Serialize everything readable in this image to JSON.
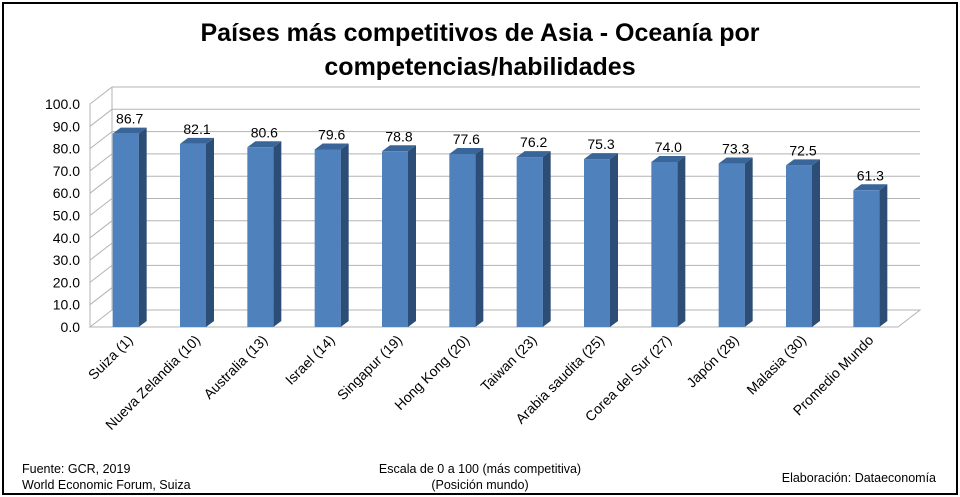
{
  "chart_data": {
    "type": "bar",
    "title_lines": [
      "Países más competitivos de Asia - Oceanía por",
      "competencias/habilidades"
    ],
    "categories": [
      "Suiza (1)",
      "Nueva Zelandia (10)",
      "Australia (13)",
      "Israel (14)",
      "Singapur (19)",
      "Hong Kong (20)",
      "Taiwan (23)",
      "Arabia saudita (25)",
      "Corea del Sur (27)",
      "Japón (28)",
      "Malasia (30)",
      "Promedio Mundo"
    ],
    "values": [
      86.7,
      82.1,
      80.6,
      79.6,
      78.8,
      77.6,
      76.2,
      75.3,
      74.0,
      73.3,
      72.5,
      61.3
    ],
    "data_labels": [
      "86.7",
      "82.1",
      "80.6",
      "79.6",
      "78.8",
      "77.6",
      "76.2",
      "75.3",
      "74.0",
      "73.3",
      "72.5",
      "61.3"
    ],
    "ylim": [
      0,
      100
    ],
    "y_ticks": [
      "0.0",
      "10.0",
      "20.0",
      "30.0",
      "40.0",
      "50.0",
      "60.0",
      "70.0",
      "80.0",
      "90.0",
      "100.0"
    ],
    "grid": true,
    "style": "3d-column",
    "colors": {
      "bar_front": "#4f81bd",
      "bar_side": "#2c4d75",
      "bar_top": "#3a6599",
      "grid": "#b3b3b3"
    }
  },
  "footer": {
    "source_line1": "Fuente:  GCR, 2019",
    "source_line2": "World Economic Forum, Suiza",
    "scale_line1": "Escala de 0 a 100 (más competitiva)",
    "scale_line2": "(Posición mundo)",
    "credit": "Elaboración: Dataeconomía"
  }
}
